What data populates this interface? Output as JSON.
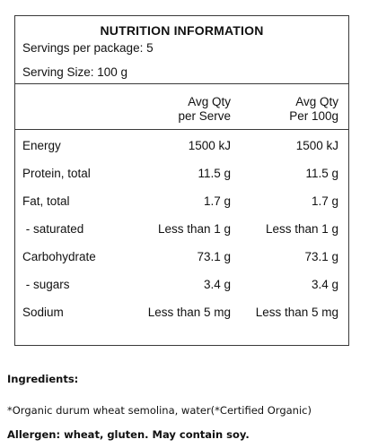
{
  "panel": {
    "title": "NUTRITION INFORMATION",
    "servings_per_package": "Servings per package: 5",
    "serving_size": "Serving Size: 100 g",
    "columns": [
      {
        "line1": "Avg Qty",
        "line2": "per Serve"
      },
      {
        "line1": "Avg Qty",
        "line2": "Per 100g"
      }
    ],
    "rows": [
      {
        "label": "Energy",
        "per_serve": "1500 kJ",
        "per_100g": "1500 kJ"
      },
      {
        "label": "Protein, total",
        "per_serve": "11.5 g",
        "per_100g": "11.5 g"
      },
      {
        "label": "Fat, total",
        "per_serve": "1.7 g",
        "per_100g": "1.7 g"
      },
      {
        "label": " - saturated",
        "per_serve": "Less than 1 g",
        "per_100g": "Less than 1 g"
      },
      {
        "label": "Carbohydrate",
        "per_serve": "73.1 g",
        "per_100g": "73.1 g"
      },
      {
        "label": " - sugars",
        "per_serve": "3.4 g",
        "per_100g": "3.4 g"
      },
      {
        "label": "Sodium",
        "per_serve": "Less than 5 mg",
        "per_100g": "Less than 5 mg"
      }
    ]
  },
  "ingredients": {
    "heading": "Ingredients:",
    "text": "*Organic durum wheat semolina, water(*Certified Organic)"
  },
  "allergen": "Allergen: wheat, gluten. May contain soy."
}
